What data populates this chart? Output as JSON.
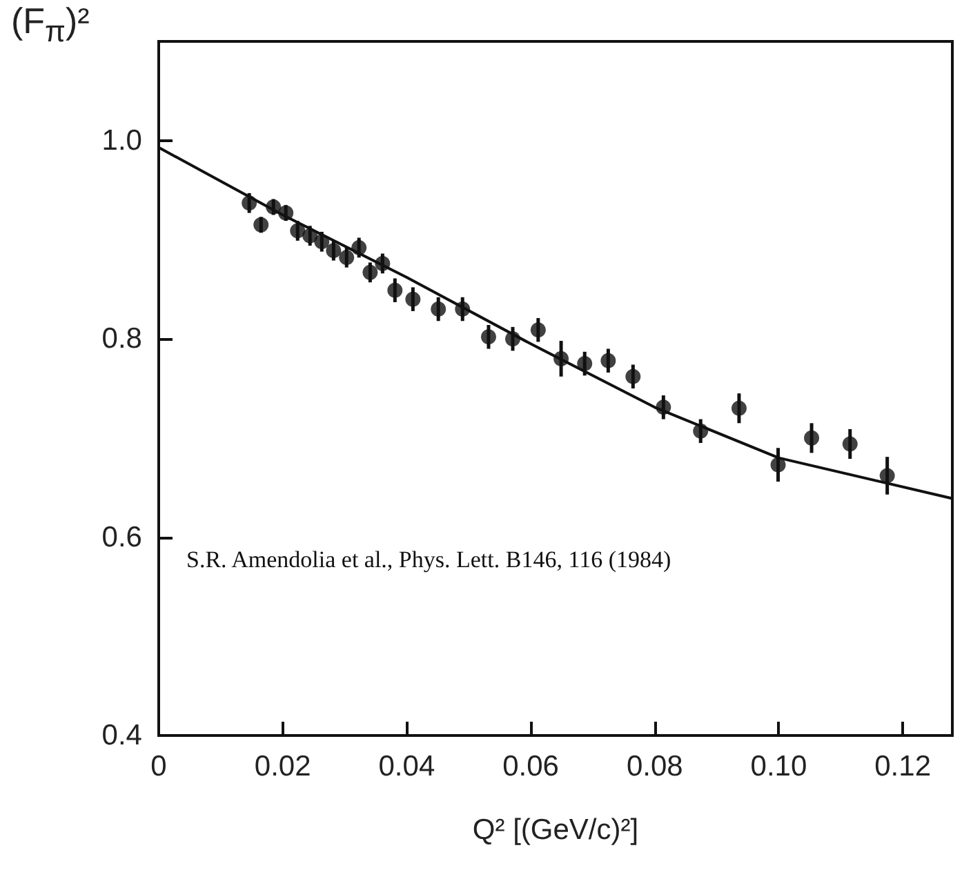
{
  "chart_data": {
    "type": "scatter",
    "xlabel": "Q² [(GeV/c)²]",
    "ylabel": "(F$_{π}$)²",
    "annotations": [
      "S.R. Amendolia et al., Phys. Lett. B146, 116 (1984)"
    ],
    "xlim": [
      0,
      0.128
    ],
    "xticks": [
      0,
      0.02,
      0.04,
      0.06,
      0.08,
      {
        "value": 0.1,
        "label": "0.10"
      },
      0.12
    ],
    "ylim": [
      0.4,
      1.1
    ],
    "yticks": [
      0.4,
      0.6,
      0.8,
      {
        "value": 1.0,
        "label": "1.0"
      }
    ],
    "grid": false,
    "series": [
      {
        "marker": "circle",
        "color": "#111111",
        "x": [
          0.0146,
          0.0165,
          0.0185,
          0.0205,
          0.0224,
          0.0244,
          0.0263,
          0.0282,
          0.0303,
          0.0323,
          0.0341,
          0.0361,
          0.0381,
          0.041,
          0.0451,
          0.049,
          0.0532,
          0.0571,
          0.0612,
          0.0649,
          0.0687,
          0.0725,
          0.0765,
          0.0814,
          0.0874,
          0.0936,
          0.0999,
          0.1053,
          0.1115,
          0.1175
        ],
        "values": [
          0.937,
          0.915,
          0.933,
          0.927,
          0.909,
          0.904,
          0.898,
          0.889,
          0.882,
          0.892,
          0.867,
          0.876,
          0.849,
          0.84,
          0.83,
          0.83,
          0.802,
          0.8,
          0.809,
          0.78,
          0.775,
          0.778,
          0.762,
          0.731,
          0.707,
          0.73,
          0.673,
          0.7,
          0.694,
          0.662
        ],
        "errors": [
          0.01,
          0.008,
          0.008,
          0.008,
          0.01,
          0.01,
          0.01,
          0.01,
          0.01,
          0.01,
          0.01,
          0.01,
          0.012,
          0.012,
          0.012,
          0.012,
          0.012,
          0.012,
          0.012,
          0.018,
          0.012,
          0.012,
          0.012,
          0.012,
          0.012,
          0.015,
          0.017,
          0.015,
          0.015,
          0.019
        ]
      },
      {
        "type": "line",
        "marker": "none",
        "color": "#111111",
        "line_style": "solid",
        "x": [
          0,
          0.02,
          0.04,
          0.06,
          0.08,
          0.1,
          0.128
        ],
        "values": [
          0.993,
          0.925,
          0.862,
          0.795,
          0.731,
          0.68,
          0.639
        ]
      }
    ]
  }
}
